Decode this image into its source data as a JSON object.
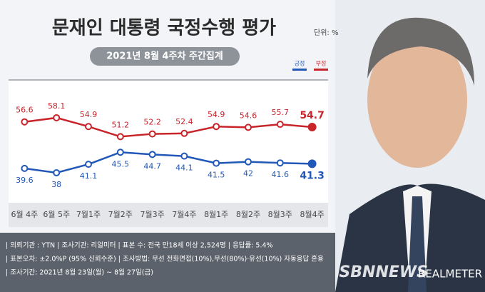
{
  "chart_data": {
    "type": "line",
    "title": "문재인 대통령 국정수행 평가",
    "unit": "단위: %",
    "subtitle": "2021년 8월 4주차 주간집계",
    "categories": [
      "6월 4주",
      "6월 5주",
      "7월1주",
      "7월2주",
      "7월3주",
      "7월4주",
      "8월1주",
      "8월2주",
      "8월3주",
      "8월4주"
    ],
    "series": [
      {
        "name": "긍정",
        "color": "#2158b8",
        "values": [
          39.6,
          38.0,
          41.1,
          45.5,
          44.7,
          44.1,
          41.5,
          42.0,
          41.6,
          41.3
        ]
      },
      {
        "name": "부정",
        "color": "#c8252b",
        "values": [
          56.6,
          58.1,
          54.9,
          51.2,
          52.2,
          52.4,
          54.9,
          54.6,
          55.7,
          54.7
        ]
      }
    ],
    "ylim": [
      32,
      62
    ],
    "footer": [
      "| 의뢰기관 : YTN  |  조사기관: 리얼미터  |  표본 수: 전국 만18세 이상 2,524명  |  응답률: 5.4%",
      "| 표본오차: ±2.0%P (95% 신뢰수준)  |  조사방법: 무선 전화면접(10%),무선(80%)·유선(10%) 자동응답 혼용",
      "| 조사기간: 2021년 8월 23일(월) ~ 8월 27일(금)"
    ],
    "watermarks": [
      "SBNNEWS",
      "REALMETER"
    ]
  }
}
